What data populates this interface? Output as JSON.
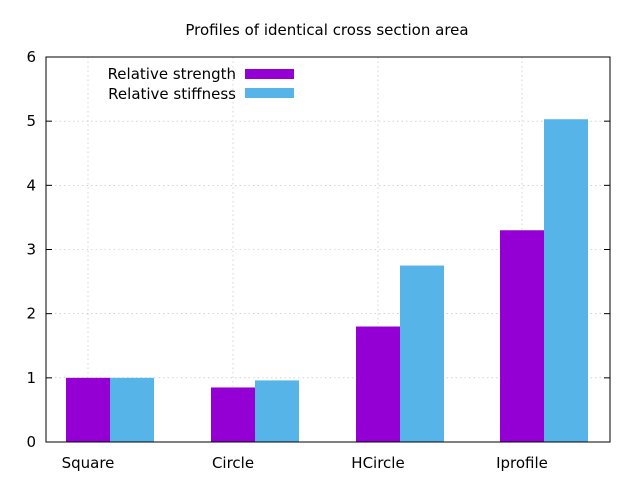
{
  "chart_data": {
    "type": "bar",
    "title": "Profiles of identical cross section area",
    "xlabel": "",
    "ylabel": "",
    "categories": [
      "Square",
      "Circle",
      "HCircle",
      "Iprofile"
    ],
    "series": [
      {
        "name": "Relative strength",
        "color": "#9400d3",
        "values": [
          1.0,
          0.85,
          1.8,
          3.3
        ]
      },
      {
        "name": "Relative stiffness",
        "color": "#56b4e9",
        "values": [
          1.0,
          0.96,
          2.75,
          5.03
        ]
      }
    ],
    "ylim": [
      0,
      6
    ],
    "yticks": [
      "0",
      "1",
      "2",
      "3",
      "4",
      "5",
      "6"
    ],
    "grid": true,
    "legend_position": "top-left"
  }
}
